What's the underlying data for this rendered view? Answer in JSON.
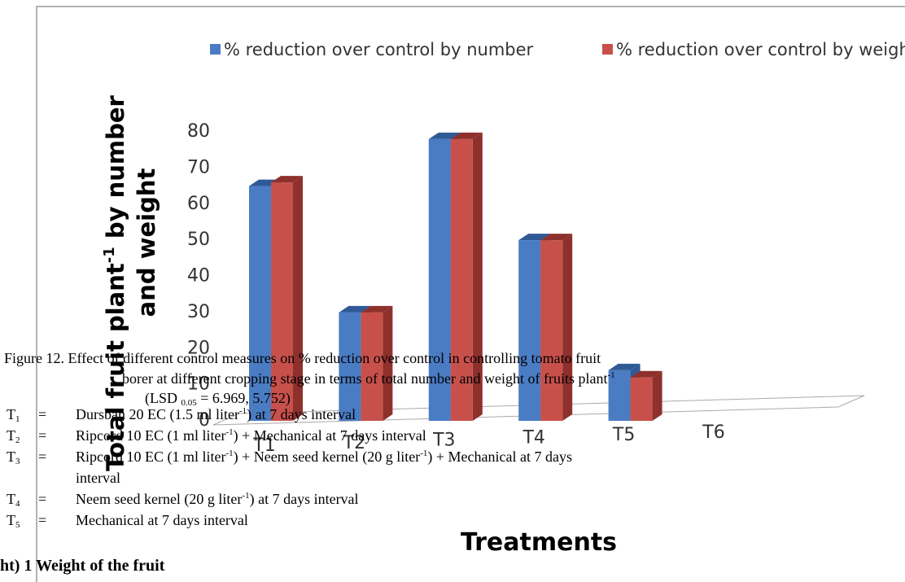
{
  "chart_data": {
    "type": "bar",
    "categories": [
      "T1",
      "T2",
      "T3",
      "T4",
      "T5",
      "T6"
    ],
    "series": [
      {
        "name": "% reduction over control by number",
        "color": "#4a7cc4",
        "side": "#2f5a96",
        "values": [
          65,
          30,
          78,
          50,
          14,
          null
        ]
      },
      {
        "name": "% reduction over control by weight",
        "color": "#c8504b",
        "side": "#8e302c",
        "values": [
          66,
          30,
          78,
          50,
          12,
          null
        ]
      }
    ],
    "ylim": [
      0,
      80
    ],
    "yticks": [
      0,
      10,
      20,
      30,
      40,
      50,
      60,
      70,
      80
    ],
    "ylabel": [
      "Total fruit plant",
      "-1",
      " by number",
      "and weight"
    ],
    "xlabel": "Treatments"
  },
  "caption": {
    "line1": "Figure 12. Effect of different control measures on % reduction over control in controlling tomato fruit",
    "line2": [
      "borer at different cropping stage in terms of total number and weight of fruits plant",
      "-1"
    ],
    "line3": [
      "(LSD ",
      "0.05",
      " = 6.969, 5.752)"
    ]
  },
  "treatments": [
    {
      "sym": "T",
      "idx": "1",
      "eq": "=",
      "parts": [
        "Dursban 20 EC (1.5 ml liter",
        "-1",
        ") at 7 days interval"
      ]
    },
    {
      "sym": "T",
      "idx": "2",
      "eq": "=",
      "parts": [
        "Ripcord 10 EC (1 ml liter",
        "-1",
        ") + Mechanical at 7 days interval"
      ]
    },
    {
      "sym": "T",
      "idx": "3",
      "eq": "=",
      "parts": [
        "Ripcord 10 EC (1 ml liter",
        "-1",
        ") + Neem seed kernel (20 g liter",
        "-1",
        ") + Mechanical at 7 days"
      ],
      "cont": "interval"
    },
    {
      "sym": "T",
      "idx": "4",
      "eq": "=",
      "parts": [
        "Neem seed kernel (20 g liter",
        "-1",
        ") at 7 days interval"
      ]
    },
    {
      "sym": "T",
      "idx": "5",
      "eq": "=",
      "parts": [
        "Mechanical at 7 days interval"
      ]
    }
  ],
  "footer": "ht) 1 Weight of the fruit"
}
